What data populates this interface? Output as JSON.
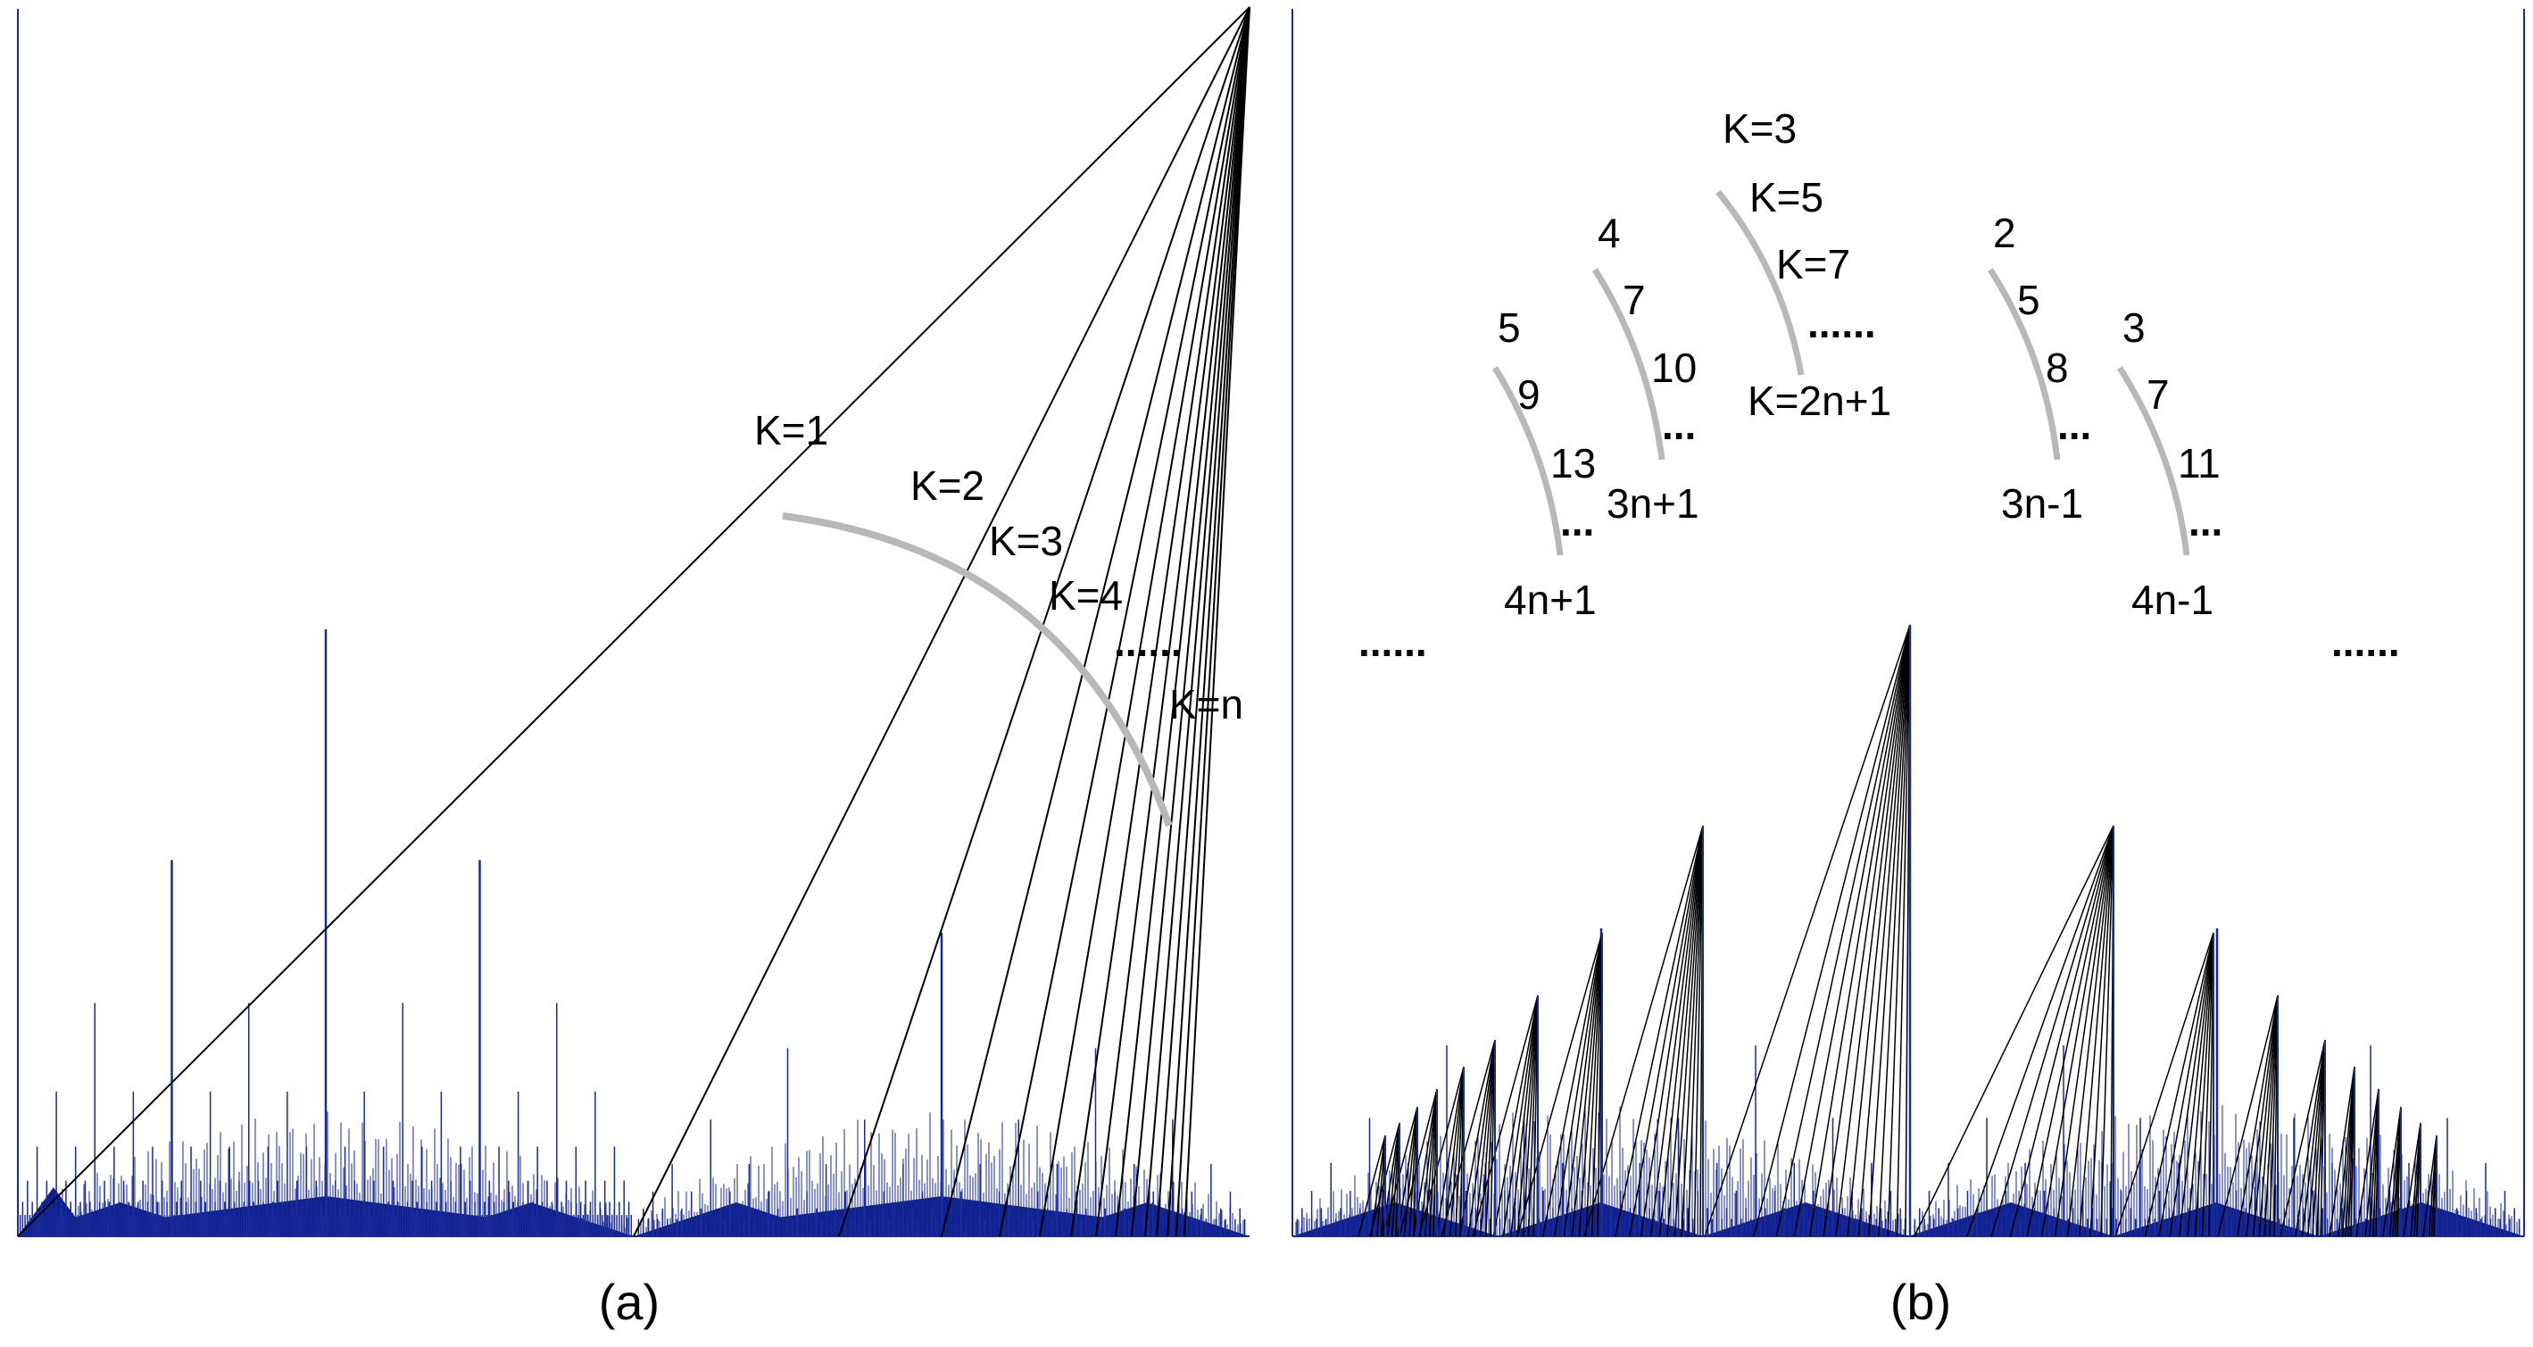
{
  "panel_a": {
    "caption": "(a)",
    "labels": [
      "K=1",
      "K=2",
      "K=3",
      "K=4",
      "......",
      "K=n"
    ]
  },
  "panel_b": {
    "caption": "(b)",
    "center_labels": [
      "K=3",
      "K=5",
      "K=7",
      "......",
      "K=2n+1"
    ],
    "left_outer_labels": [
      "5",
      "9",
      "13",
      "...",
      "4n+1"
    ],
    "left_inner_labels": [
      "4",
      "7",
      "10",
      "...",
      "3n+1"
    ],
    "right_inner_labels": [
      "2",
      "5",
      "8",
      "...",
      "3n-1"
    ],
    "right_outer_labels": [
      "3",
      "7",
      "11",
      "...",
      "4n-1"
    ],
    "side_dots": [
      "......",
      "......"
    ]
  },
  "colors": {
    "stem": "#1a2a9a",
    "baseline": "#0c1f8c",
    "fan_line": "#000000",
    "arc": "#b8b8b8",
    "frame": "#1a2a9a"
  }
}
